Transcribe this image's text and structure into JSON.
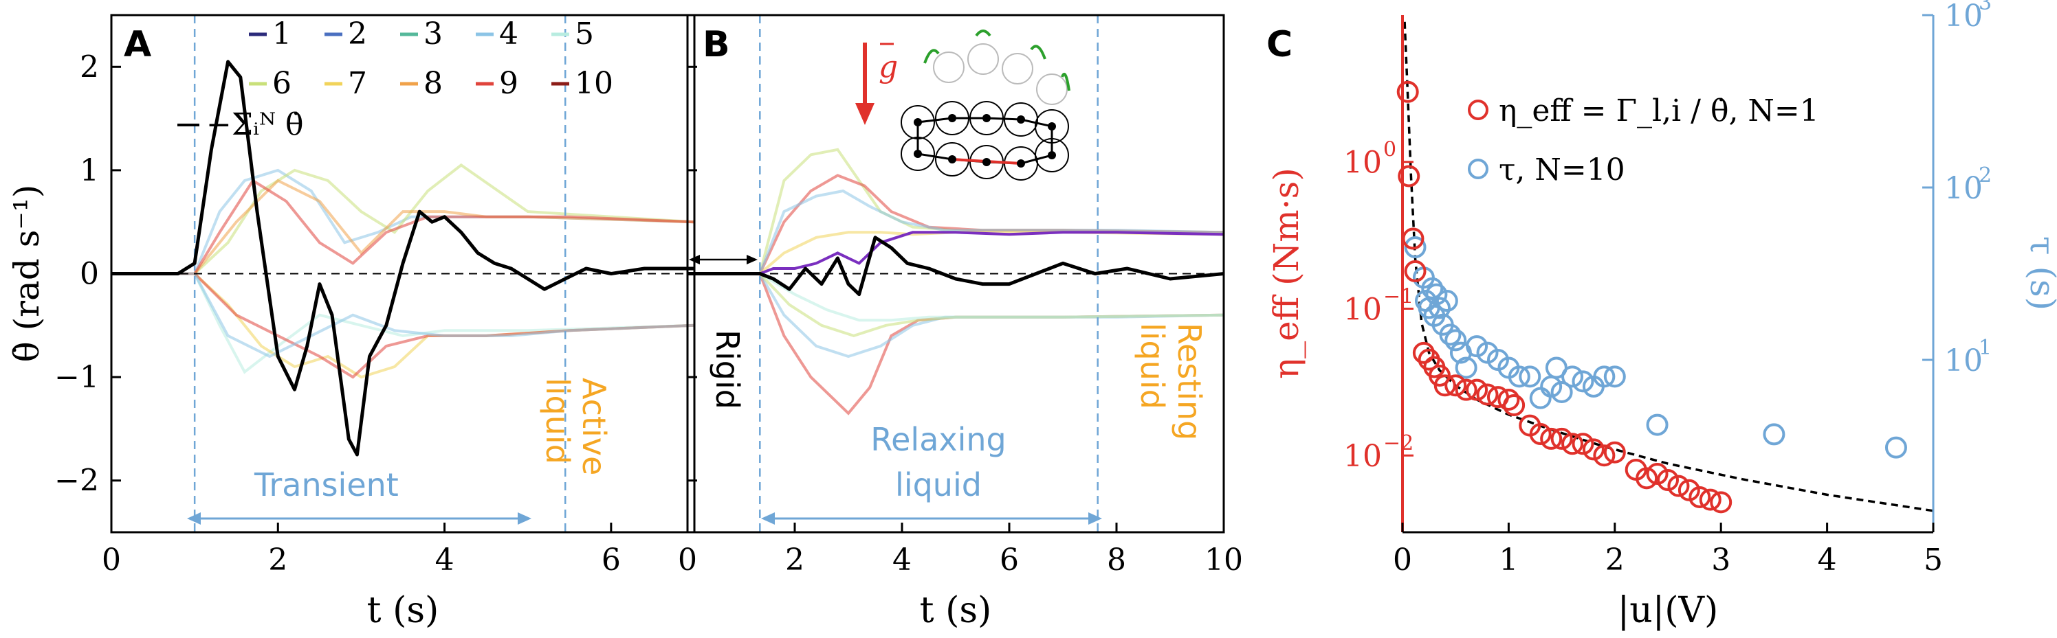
{
  "colors": {
    "axis": "#000000",
    "sum_line": "#000000",
    "region_blue": "#6fa6d6",
    "liquid_orange": "#f5a623",
    "eta_red": "#e0312b",
    "tau_blue": "#6fa6d6",
    "gravity_red": "#e0312b",
    "rotation_green": "#2ca02c"
  },
  "chart_data": [
    {
      "panel": "A",
      "type": "line",
      "xlabel": "t (s)",
      "ylabel": "θ̇ (rad s⁻¹)",
      "xlim": [
        0,
        7
      ],
      "ylim": [
        -2.5,
        2.5
      ],
      "xticks": [
        "0",
        "2",
        "4",
        "6"
      ],
      "yticks": [
        "−2",
        "−1",
        "0",
        "1",
        "2"
      ],
      "zero_line": true,
      "vlines": [
        1.0,
        5.45
      ],
      "legend_entries": [
        "1",
        "2",
        "3",
        "4",
        "5",
        "6",
        "7",
        "8",
        "9",
        "10"
      ],
      "legend_colors": [
        "#2b2a7a",
        "#4a6fc0",
        "#55b89a",
        "#8cc4e6",
        "#b8ece0",
        "#c9e07a",
        "#f1d35a",
        "#f0a24a",
        "#e0443c",
        "#8c1c17"
      ],
      "sum_label": "−Σᵢᴺ θ̇",
      "annotations": {
        "transient": "Transient",
        "active_1": "Active",
        "active_2": "liquid"
      },
      "sum_series": {
        "x": [
          0,
          0.8,
          1.0,
          1.2,
          1.4,
          1.55,
          1.75,
          2.0,
          2.2,
          2.35,
          2.5,
          2.65,
          2.85,
          2.95,
          3.1,
          3.3,
          3.5,
          3.7,
          3.85,
          4.0,
          4.2,
          4.4,
          4.6,
          4.8,
          5.0,
          5.2,
          5.45,
          5.7,
          6.0,
          6.4,
          7.0
        ],
        "y": [
          0,
          0,
          0.1,
          1.2,
          2.05,
          1.9,
          0.6,
          -0.8,
          -1.12,
          -0.7,
          -0.1,
          -0.4,
          -1.6,
          -1.75,
          -0.8,
          -0.5,
          0.1,
          0.6,
          0.5,
          0.55,
          0.4,
          0.2,
          0.1,
          0.05,
          -0.05,
          -0.15,
          -0.05,
          0.05,
          0.0,
          0.05,
          0.05
        ]
      },
      "pale_series": [
        {
          "color": "#8cc4e6",
          "x": [
            0,
            1.0,
            1.3,
            1.6,
            2.0,
            2.4,
            2.8,
            3.2,
            3.6,
            4.0,
            5.0,
            7.0
          ],
          "y": [
            0,
            0,
            0.6,
            0.9,
            1.0,
            0.8,
            0.3,
            0.4,
            0.55,
            0.55,
            0.55,
            0.5
          ]
        },
        {
          "color": "#c9e07a",
          "x": [
            0,
            1.0,
            1.4,
            1.8,
            2.2,
            2.6,
            3.0,
            3.4,
            3.8,
            4.2,
            5.0,
            7.0
          ],
          "y": [
            0,
            0,
            0.3,
            0.8,
            1.0,
            0.9,
            0.6,
            0.4,
            0.8,
            1.05,
            0.6,
            0.5
          ]
        },
        {
          "color": "#f0a24a",
          "x": [
            0,
            1.0,
            1.5,
            2.0,
            2.5,
            3.0,
            3.5,
            4.0,
            4.5,
            5.0,
            7.0
          ],
          "y": [
            0,
            0,
            0.5,
            0.9,
            0.7,
            0.2,
            0.6,
            0.6,
            0.55,
            0.55,
            0.5
          ]
        },
        {
          "color": "#e0443c",
          "x": [
            0,
            1.0,
            1.3,
            1.7,
            2.1,
            2.5,
            2.9,
            3.3,
            3.8,
            4.5,
            5.5,
            7.0
          ],
          "y": [
            0,
            0,
            0.4,
            0.9,
            0.7,
            0.3,
            0.1,
            0.4,
            0.55,
            0.55,
            0.55,
            0.5
          ]
        },
        {
          "color": "#b8ece0",
          "x": [
            0,
            1.0,
            1.3,
            1.6,
            2.0,
            2.5,
            3.0,
            3.5,
            4.0,
            5.0,
            7.0
          ],
          "y": [
            0,
            0,
            -0.5,
            -0.95,
            -0.7,
            -0.4,
            -0.5,
            -0.6,
            -0.55,
            -0.55,
            -0.5
          ]
        },
        {
          "color": "#f1d35a",
          "x": [
            0,
            1.0,
            1.4,
            1.8,
            2.2,
            2.6,
            3.0,
            3.4,
            3.8,
            4.5,
            5.5,
            7.0
          ],
          "y": [
            0,
            0,
            -0.3,
            -0.7,
            -0.9,
            -0.8,
            -1.0,
            -0.9,
            -0.6,
            -0.6,
            -0.55,
            -0.5
          ]
        },
        {
          "color": "#e0443c",
          "x": [
            0,
            1.0,
            1.5,
            2.0,
            2.5,
            2.9,
            3.3,
            3.8,
            4.5,
            5.5,
            7.0
          ],
          "y": [
            0,
            0,
            -0.4,
            -0.6,
            -0.8,
            -1.0,
            -0.7,
            -0.6,
            -0.6,
            -0.55,
            -0.5
          ]
        },
        {
          "color": "#8cc4e6",
          "x": [
            0,
            1.0,
            1.4,
            1.9,
            2.4,
            2.9,
            3.4,
            4.0,
            4.8,
            5.5,
            7.0
          ],
          "y": [
            0,
            0,
            -0.6,
            -0.8,
            -0.6,
            -0.4,
            -0.55,
            -0.6,
            -0.6,
            -0.55,
            -0.5
          ]
        }
      ]
    },
    {
      "panel": "B",
      "type": "line",
      "xlabel": "t (s)",
      "xlim": [
        0,
        10
      ],
      "ylim": [
        -2.5,
        2.5
      ],
      "xticks": [
        "0",
        "2",
        "4",
        "6",
        "8",
        "10"
      ],
      "zero_line": true,
      "vlines": [
        1.35,
        7.65
      ],
      "gravity_label": "g",
      "annotations": {
        "rigid": "Rigid",
        "relaxing_1": "Relaxing",
        "relaxing_2": "liquid",
        "resting_1": "Resting",
        "resting_2": "liquid"
      },
      "sum_series": {
        "x": [
          0,
          1.35,
          1.6,
          1.9,
          2.2,
          2.5,
          2.8,
          3.0,
          3.2,
          3.5,
          3.8,
          4.1,
          4.5,
          5.0,
          5.5,
          6.0,
          6.5,
          7.0,
          7.6,
          8.2,
          9.0,
          10.0
        ],
        "y": [
          0,
          0,
          -0.05,
          -0.15,
          0.05,
          -0.1,
          0.15,
          -0.1,
          -0.2,
          0.35,
          0.25,
          0.1,
          0.05,
          -0.05,
          -0.1,
          -0.1,
          0.0,
          0.1,
          0.0,
          0.05,
          -0.05,
          0.0
        ]
      },
      "purple_series": {
        "x": [
          0,
          1.35,
          1.6,
          2.0,
          2.4,
          2.8,
          3.2,
          3.6,
          4.2,
          5.0,
          6.0,
          7.0,
          8.0,
          10.0
        ],
        "y": [
          0,
          0,
          0.05,
          0.05,
          0.1,
          0.2,
          0.1,
          0.3,
          0.4,
          0.4,
          0.38,
          0.4,
          0.4,
          0.38
        ]
      },
      "pale_series": [
        {
          "color": "#c9e07a",
          "x": [
            0,
            1.35,
            1.8,
            2.3,
            2.8,
            3.2,
            3.6,
            4.2,
            5.0,
            7.0,
            10.0
          ],
          "y": [
            0,
            0,
            0.9,
            1.15,
            1.2,
            0.9,
            0.6,
            0.45,
            0.42,
            0.42,
            0.4
          ]
        },
        {
          "color": "#e0443c",
          "x": [
            0,
            1.35,
            1.8,
            2.3,
            2.8,
            3.3,
            3.8,
            4.5,
            5.5,
            7.0,
            10.0
          ],
          "y": [
            0,
            0,
            0.5,
            0.8,
            0.95,
            0.85,
            0.6,
            0.45,
            0.42,
            0.42,
            0.4
          ]
        },
        {
          "color": "#8cc4e6",
          "x": [
            0,
            1.35,
            1.8,
            2.4,
            2.9,
            3.4,
            4.0,
            4.8,
            6.0,
            8.0,
            10.0
          ],
          "y": [
            0,
            0,
            0.6,
            0.75,
            0.8,
            0.65,
            0.5,
            0.42,
            0.42,
            0.42,
            0.4
          ]
        },
        {
          "color": "#f1d35a",
          "x": [
            0,
            1.35,
            1.8,
            2.4,
            3.0,
            3.6,
            4.2,
            5.0,
            7.0,
            10.0
          ],
          "y": [
            0,
            0,
            0.2,
            0.35,
            0.4,
            0.4,
            0.38,
            0.4,
            0.4,
            0.38
          ]
        },
        {
          "color": "#e0443c",
          "x": [
            0,
            1.35,
            1.8,
            2.3,
            2.7,
            3.0,
            3.4,
            3.8,
            4.3,
            5.0,
            7.0,
            10.0
          ],
          "y": [
            0,
            0,
            -0.6,
            -1.0,
            -1.2,
            -1.35,
            -1.1,
            -0.6,
            -0.45,
            -0.42,
            -0.42,
            -0.4
          ]
        },
        {
          "color": "#8cc4e6",
          "x": [
            0,
            1.35,
            1.8,
            2.4,
            3.0,
            3.6,
            4.2,
            4.8,
            6.0,
            8.0,
            10.0
          ],
          "y": [
            0,
            0,
            -0.4,
            -0.7,
            -0.8,
            -0.7,
            -0.5,
            -0.42,
            -0.42,
            -0.42,
            -0.4
          ]
        },
        {
          "color": "#c9e07a",
          "x": [
            0,
            1.35,
            1.9,
            2.5,
            3.1,
            3.7,
            4.3,
            5.0,
            7.0,
            10.0
          ],
          "y": [
            0,
            0,
            -0.3,
            -0.5,
            -0.6,
            -0.5,
            -0.45,
            -0.42,
            -0.42,
            -0.4
          ]
        },
        {
          "color": "#b8ece0",
          "x": [
            0,
            1.35,
            2.0,
            2.6,
            3.2,
            3.8,
            4.5,
            5.5,
            7.0,
            10.0
          ],
          "y": [
            0,
            0,
            -0.2,
            -0.35,
            -0.45,
            -0.45,
            -0.42,
            -0.42,
            -0.42,
            -0.4
          ]
        }
      ]
    },
    {
      "panel": "C",
      "type": "scatter",
      "xlabel": "|u|(V)",
      "ylabel_left": "η_eff (Nm·s)",
      "ylabel_right": "τ (s)",
      "xlim": [
        0,
        5
      ],
      "xticks": [
        "0",
        "1",
        "2",
        "3",
        "4",
        "5"
      ],
      "ylim_left": [
        0.003,
        10
      ],
      "ylim_right": [
        1,
        1000
      ],
      "log_left": true,
      "log_right": true,
      "left_ticks": [
        {
          "v": 1,
          "base": "10",
          "exp": "0"
        },
        {
          "v": 0.1,
          "base": "10",
          "exp": "−1"
        },
        {
          "v": 0.01,
          "base": "10",
          "exp": "−2"
        }
      ],
      "right_ticks": [
        {
          "v": 1000,
          "base": "10",
          "exp": "3"
        },
        {
          "v": 100,
          "base": "10",
          "exp": "2"
        },
        {
          "v": 10,
          "base": "10",
          "exp": "1"
        }
      ],
      "legend": [
        {
          "label": "η_eff = Γ_l,i / θ̇, N=1",
          "color": "#e0312b"
        },
        {
          "label": "τ, N=10",
          "color": "#6fa6d6"
        }
      ],
      "eta_series": {
        "x": [
          0.05,
          0.06,
          0.1,
          0.12,
          0.2,
          0.25,
          0.3,
          0.35,
          0.4,
          0.5,
          0.6,
          0.7,
          0.8,
          0.9,
          1.0,
          1.05,
          1.2,
          1.3,
          1.4,
          1.5,
          1.6,
          1.7,
          1.8,
          1.9,
          2.0,
          2.2,
          2.3,
          2.4,
          2.5,
          2.6,
          2.7,
          2.8,
          2.9,
          3.0
        ],
        "y": [
          3.0,
          0.8,
          0.3,
          0.18,
          0.05,
          0.045,
          0.04,
          0.035,
          0.03,
          0.03,
          0.028,
          0.028,
          0.026,
          0.025,
          0.024,
          0.022,
          0.016,
          0.014,
          0.013,
          0.013,
          0.012,
          0.012,
          0.011,
          0.01,
          0.0105,
          0.008,
          0.007,
          0.0075,
          0.0068,
          0.0062,
          0.0058,
          0.0052,
          0.005,
          0.0048
        ]
      },
      "tau_series": {
        "x": [
          0.12,
          0.2,
          0.22,
          0.25,
          0.28,
          0.3,
          0.32,
          0.35,
          0.38,
          0.42,
          0.45,
          0.5,
          0.55,
          0.6,
          0.7,
          0.8,
          0.9,
          1.0,
          1.1,
          1.2,
          1.3,
          1.4,
          1.45,
          1.5,
          1.6,
          1.7,
          1.8,
          1.9,
          2.0,
          2.4,
          3.5,
          4.65
        ],
        "y": [
          45,
          30,
          22,
          20,
          26,
          18,
          24,
          20,
          16,
          22,
          14,
          13,
          11,
          9,
          12,
          11,
          10,
          9,
          8,
          8,
          6,
          7,
          9,
          6.5,
          8,
          7.5,
          7,
          8,
          8,
          4.2,
          3.7,
          3.1
        ]
      },
      "fit_curve": {
        "x": [
          0.02,
          0.05,
          0.08,
          0.12,
          0.18,
          0.25,
          0.35,
          0.5,
          0.7,
          1.0,
          1.4,
          1.9,
          2.5,
          3.2,
          4.0,
          5.0
        ],
        "y": [
          9.0,
          2.8,
          0.8,
          0.22,
          0.08,
          0.05,
          0.038,
          0.03,
          0.024,
          0.019,
          0.015,
          0.0115,
          0.0088,
          0.0069,
          0.0054,
          0.0042
        ]
      }
    }
  ]
}
